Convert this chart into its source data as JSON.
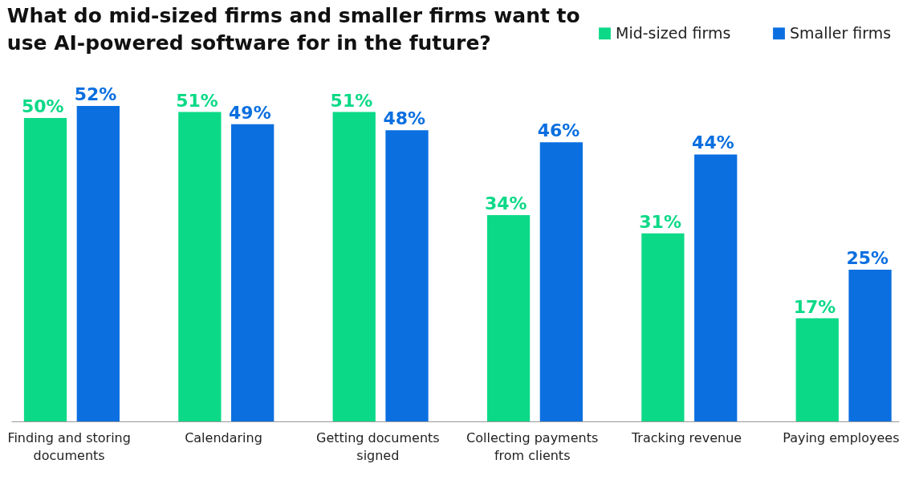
{
  "chart_data": {
    "type": "bar",
    "title": "What do mid-sized firms and smaller firms want to use AI-powered software for in the future?",
    "categories": [
      "Finding and storing documents",
      "Calendaring",
      "Getting documents signed",
      "Collecting payments from clients",
      "Tracking revenue",
      "Paying employees"
    ],
    "series": [
      {
        "name": "Mid-sized firms",
        "color": "#0cd987",
        "values": [
          50,
          51,
          51,
          34,
          31,
          17
        ],
        "value_labels": [
          "50%",
          "51%",
          "51%",
          "34%",
          "31%",
          "17%"
        ]
      },
      {
        "name": "Smaller firms",
        "color": "#0b6fe0",
        "values": [
          52,
          49,
          48,
          46,
          44,
          25
        ],
        "value_labels": [
          "52%",
          "49%",
          "48%",
          "46%",
          "44%",
          "25%"
        ]
      }
    ],
    "legend": "top right"
  }
}
